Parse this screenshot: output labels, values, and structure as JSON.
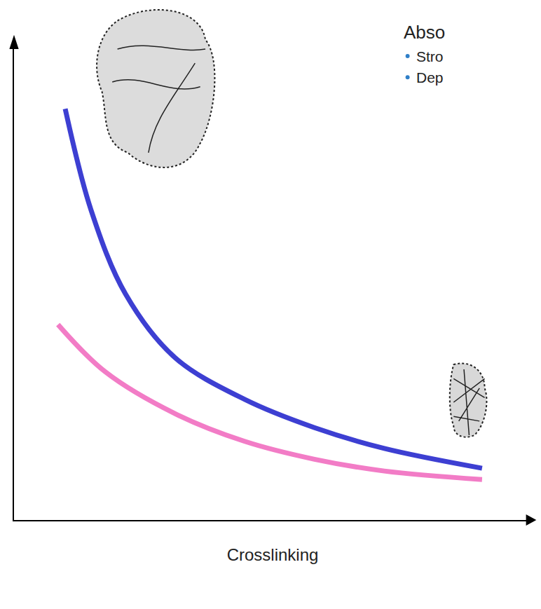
{
  "chart_data": {
    "type": "line",
    "title": "Abso",
    "bullets": [
      "Stro",
      "Dep"
    ],
    "x_label": "Crosslinking",
    "series": [
      {
        "color": "#3d3fd2",
        "x": [
          0.99,
          1.49,
          2.16,
          3.11,
          4.46,
          5.81,
          7.16,
          9.05
        ],
        "values": [
          8.73,
          6.58,
          4.79,
          3.45,
          2.56,
          1.96,
          1.52,
          1.1
        ]
      },
      {
        "color": "#f27cc6",
        "x": [
          0.85,
          1.76,
          3.11,
          4.46,
          5.81,
          7.16,
          9.05
        ],
        "values": [
          4.15,
          3.15,
          2.26,
          1.67,
          1.29,
          1.04,
          0.86
        ]
      }
    ],
    "xlim": [
      0,
      10
    ],
    "ylim": [
      0,
      10
    ],
    "xticks": [],
    "yticks": [],
    "grid": false,
    "tick_labels": false
  }
}
